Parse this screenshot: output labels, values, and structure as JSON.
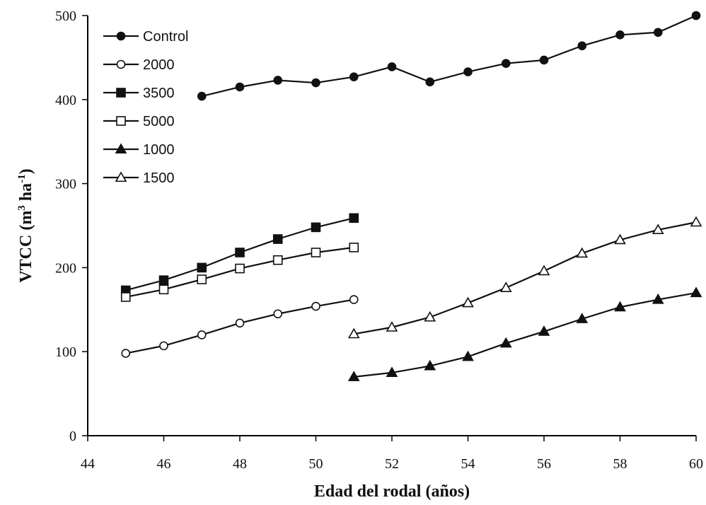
{
  "chart_data": {
    "type": "line",
    "title": "",
    "xlabel": "Edad del rodal (años)",
    "ylabel": "VTCC (m",
    "ylabel_sup1": "3",
    "ylabel_mid": " ha",
    "ylabel_sup2": "-1",
    "ylabel_end": ")",
    "xlim": [
      44,
      60
    ],
    "ylim": [
      0,
      500
    ],
    "xticks": [
      44,
      46,
      48,
      50,
      52,
      54,
      56,
      58,
      60
    ],
    "yticks": [
      0,
      100,
      200,
      300,
      400,
      500
    ],
    "grid": false,
    "legend": "top-left",
    "series": [
      {
        "name": "Control",
        "marker": "circle",
        "filled": true,
        "x": [
          47,
          48,
          49,
          50,
          51,
          52,
          53,
          54,
          55,
          56,
          57,
          58,
          59,
          60
        ],
        "values": [
          404,
          415,
          423,
          420,
          427,
          439,
          421,
          433,
          443,
          447,
          464,
          477,
          480,
          500
        ]
      },
      {
        "name": "2000",
        "marker": "circle",
        "filled": false,
        "x": [
          45,
          46,
          47,
          48,
          49,
          50,
          51
        ],
        "values": [
          98,
          107,
          120,
          134,
          145,
          154,
          162
        ]
      },
      {
        "name": "3500",
        "marker": "square",
        "filled": true,
        "x": [
          45,
          46,
          47,
          48,
          49,
          50,
          51
        ],
        "values": [
          173,
          185,
          200,
          218,
          234,
          248,
          259
        ]
      },
      {
        "name": "5000",
        "marker": "square",
        "filled": false,
        "x": [
          45,
          46,
          47,
          48,
          49,
          50,
          51
        ],
        "values": [
          165,
          174,
          186,
          199,
          209,
          218,
          224
        ]
      },
      {
        "name": "1000",
        "marker": "triangle",
        "filled": true,
        "x": [
          51,
          52,
          53,
          54,
          55,
          56,
          57,
          58,
          59,
          60
        ],
        "values": [
          70,
          75,
          83,
          94,
          110,
          124,
          139,
          153,
          162,
          170
        ]
      },
      {
        "name": "1500",
        "marker": "triangle",
        "filled": false,
        "x": [
          51,
          52,
          53,
          54,
          55,
          56,
          57,
          58,
          59,
          60
        ],
        "values": [
          121,
          129,
          141,
          158,
          176,
          196,
          217,
          233,
          245,
          254
        ]
      }
    ]
  }
}
